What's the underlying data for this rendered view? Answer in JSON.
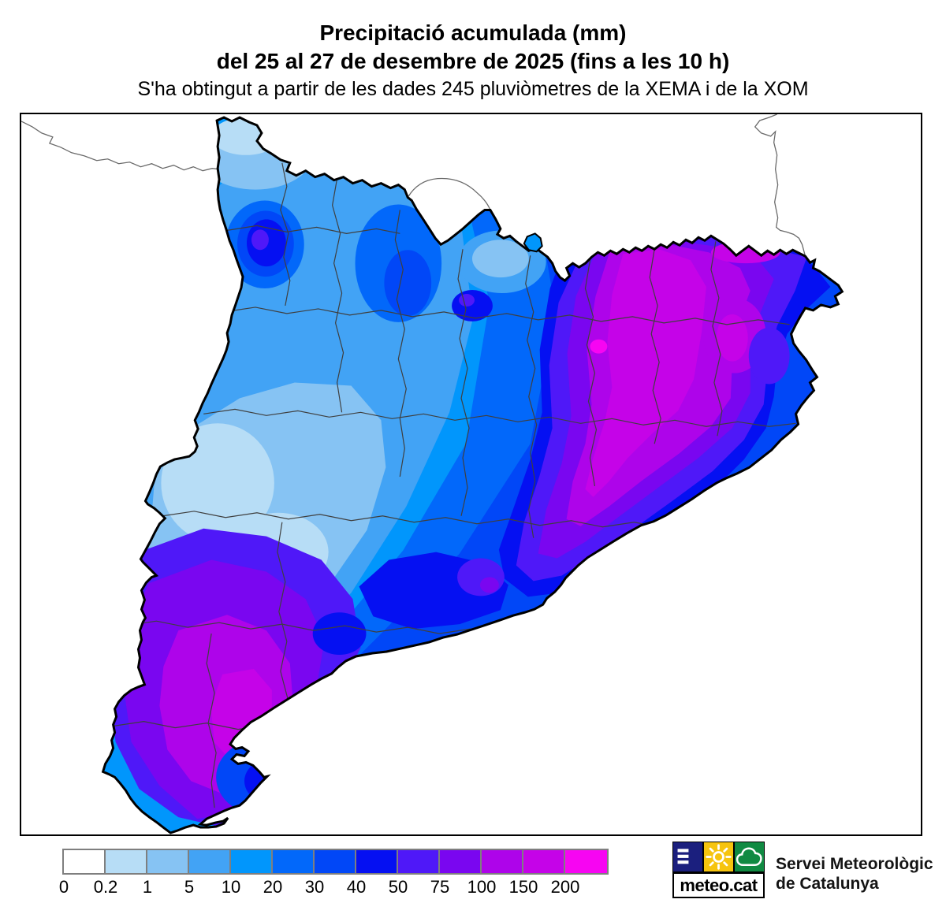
{
  "title": {
    "line1": "Precipitació acumulada (mm)",
    "line2": "del 25 al 27 de desembre de 2025 (fins a les 10 h)",
    "subtitle": "S'ha obtingut a partir de les dades 245 pluviòmetres de la XEMA i de la XOM"
  },
  "legend": {
    "values_mm": [
      0,
      0.2,
      1,
      5,
      10,
      20,
      30,
      40,
      50,
      75,
      100,
      150,
      200
    ],
    "bins": [
      {
        "label": "0",
        "color": "#ffffff"
      },
      {
        "label": "0.2",
        "color": "#b7ddf6"
      },
      {
        "label": "1",
        "color": "#86c3f3"
      },
      {
        "label": "5",
        "color": "#42a3f5"
      },
      {
        "label": "10",
        "color": "#0196fc"
      },
      {
        "label": "20",
        "color": "#0268fa"
      },
      {
        "label": "30",
        "color": "#0147f7"
      },
      {
        "label": "40",
        "color": "#0510f2"
      },
      {
        "label": "50",
        "color": "#4f18f8"
      },
      {
        "label": "75",
        "color": "#7a06f0"
      },
      {
        "label": "100",
        "color": "#ae04ea"
      },
      {
        "label": "150",
        "color": "#c503e8"
      },
      {
        "label": "200",
        "color": "#f705f2"
      }
    ],
    "border_color": "#7f7f7f"
  },
  "map": {
    "area_label": "Catalunya",
    "kind": "filled-contour accumulated precipitation",
    "outline_color": "#000000",
    "comarca_border_color": "#3f3f3f",
    "external_border_color": "#6a6a6a"
  },
  "branding": {
    "logo_text": "meteo.cat",
    "org_line1": "Servei Meteorològic",
    "org_line2": "de Catalunya",
    "logo_colors": {
      "navy": "#1b1f7e",
      "yellow": "#f6c40e",
      "green": "#108a42"
    }
  }
}
